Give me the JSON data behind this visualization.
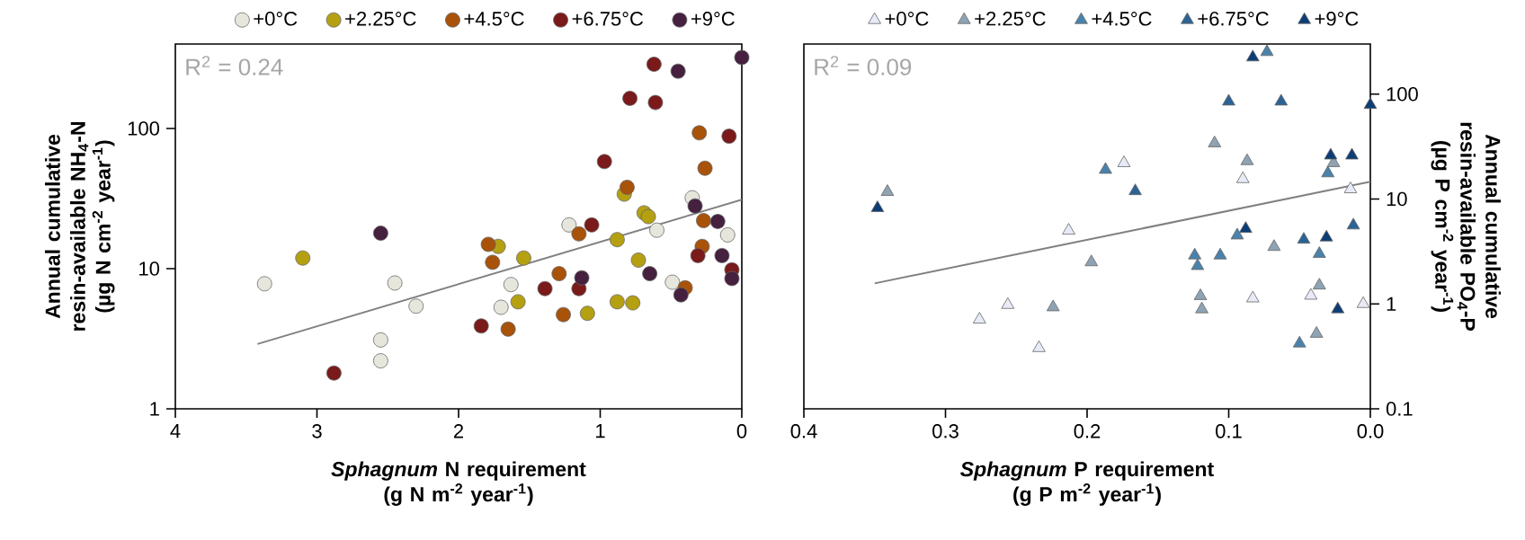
{
  "chart_data": [
    {
      "type": "scatter",
      "marker": "circle",
      "log": "y",
      "legend": "top",
      "grid": false,
      "xlabel": "*Sphagnum* N requirement (g N m$^{-2}$ year$^{-1}$)",
      "ylabel": "Annual cumulative resin-available NH$_{4}$-N (µg N cm$^{-2}$ year$^{-1}$)",
      "xlim": [
        4,
        0
      ],
      "ylim": [
        1,
        400
      ],
      "xticks": [
        4,
        3,
        2,
        1,
        0
      ],
      "yticks": [
        1,
        10,
        100
      ],
      "annotations": [
        "R$^{2}$ = 0.24"
      ],
      "series": [
        {
          "name": "+0°C",
          "color": "#e6e6dc",
          "x": [
            0.35,
            1.22,
            0.6,
            0.1,
            0.49,
            3.37,
            2.45,
            1.63,
            1.7,
            2.3,
            2.55,
            2.55
          ],
          "values": [
            32,
            20.5,
            18.8,
            17.4,
            8.0,
            7.8,
            7.9,
            7.7,
            5.3,
            5.4,
            3.1,
            2.2
          ]
        },
        {
          "name": "+2.25°C",
          "color": "#b5a012",
          "x": [
            0.83,
            0.69,
            0.66,
            0.88,
            3.1,
            1.72,
            1.54,
            0.73,
            1.58,
            1.09,
            0.88,
            0.77
          ],
          "values": [
            34,
            25,
            23.5,
            16.1,
            11.9,
            14.4,
            11.9,
            11.5,
            5.8,
            4.8,
            5.8,
            5.7
          ]
        },
        {
          "name": "+4.5°C",
          "color": "#a8520a",
          "x": [
            0.3,
            0.26,
            0.81,
            1.15,
            0.27,
            1.79,
            1.76,
            0.28,
            1.29,
            1.65,
            1.26,
            0.4
          ],
          "values": [
            93,
            52,
            38,
            17.7,
            22,
            14.9,
            11.1,
            14.4,
            9.2,
            3.7,
            4.7,
            7.3
          ]
        },
        {
          "name": "+6.75°C",
          "color": "#7a1a1a",
          "x": [
            0.62,
            0.79,
            0.61,
            0.09,
            0.97,
            1.06,
            0.31,
            0.07,
            1.39,
            1.15,
            1.84,
            2.88
          ],
          "values": [
            287,
            164,
            153,
            88,
            58,
            20.5,
            12.4,
            9.8,
            7.2,
            7.2,
            3.9,
            1.8
          ]
        },
        {
          "name": "+9°C",
          "color": "#45203f",
          "x": [
            0,
            0.45,
            0.33,
            0.17,
            2.55,
            0.14,
            0.65,
            0.07,
            1.13,
            0.43
          ],
          "values": [
            321,
            256,
            28,
            21.7,
            17.9,
            12.4,
            9.2,
            8.5,
            8.6,
            6.5
          ]
        },
        {
          "type": "line",
          "marker": "none",
          "color": "#808080",
          "x": [
            3.42,
            0
          ],
          "values": [
            2.9,
            31
          ]
        }
      ]
    },
    {
      "type": "scatter",
      "marker": "triangle",
      "log": "y",
      "legend": "top",
      "grid": false,
      "xlabel": "*Sphagnum* P requirement (g P m$^{-2}$ year$^{-1}$)",
      "ylabel": "Annual cumulative resin-available PO$_{4}$-P (µg P cm$^{-2}$ year$^{-1}$)",
      "xlim": [
        0.4,
        0
      ],
      "ylim": [
        0.1,
        300
      ],
      "xticks": [
        0.4,
        0.3,
        0.2,
        0.1,
        {
          "value": 0,
          "label": "0.0"
        }
      ],
      "yticks": [
        0.1,
        1,
        10,
        100
      ],
      "annotations": [
        "R$^{2}$ = 0.09"
      ],
      "series": [
        {
          "name": "+0°C",
          "color": "#e8ebf7",
          "x": [
            0.09,
            0.174,
            0.213,
            0.276,
            0.256,
            0.234,
            0.083,
            0.014,
            0.042,
            0.005
          ],
          "values": [
            15.5,
            22,
            5.0,
            0.71,
            0.98,
            0.38,
            1.13,
            12.4,
            1.2,
            1.0
          ]
        },
        {
          "name": "+2.25°C",
          "color": "#8fa3b3",
          "x": [
            0.11,
            0.087,
            0.341,
            0.197,
            0.068,
            0.224,
            0.12,
            0.119,
            0.026,
            0.038,
            0.036
          ],
          "values": [
            34,
            23,
            11.7,
            2.5,
            3.5,
            0.93,
            1.19,
            0.89,
            22,
            0.52,
            1.5
          ]
        },
        {
          "name": "+4.5°C",
          "color": "#4a82ab",
          "x": [
            0.073,
            0.187,
            0.094,
            0.124,
            0.106,
            0.122,
            0.03,
            0.036,
            0.05
          ],
          "values": [
            252,
            19,
            4.5,
            2.9,
            2.9,
            2.3,
            17.6,
            3.0,
            0.42
          ]
        },
        {
          "name": "+6.75°C",
          "color": "#2c6395",
          "x": [
            0.1,
            0.063,
            0.166,
            0.047,
            0.012
          ],
          "values": [
            85,
            85,
            11.9,
            4.1,
            5.6
          ]
        },
        {
          "name": "+9°C",
          "color": "#0d3d75",
          "x": [
            0.083,
            0.348,
            0.088,
            0.028,
            0.013,
            0.031,
            0,
            0.023
          ],
          "values": [
            224,
            8.2,
            5.2,
            26,
            26,
            4.3,
            79,
            0.89
          ]
        },
        {
          "type": "line",
          "marker": "none",
          "color": "#808080",
          "x": [
            0.35,
            0
          ],
          "values": [
            1.57,
            14.6
          ]
        }
      ]
    }
  ]
}
